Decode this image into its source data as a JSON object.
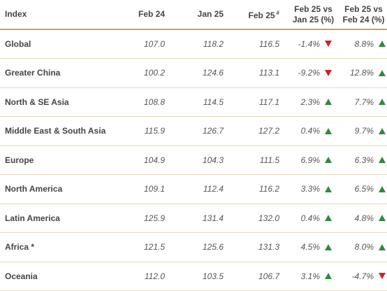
{
  "colors": {
    "up": "#2e8b3a",
    "down": "#d91f1f",
    "rule": "#c6a25c"
  },
  "table": {
    "headers": {
      "index": "Index",
      "feb24": "Feb 24",
      "jan25": "Jan 25",
      "feb25": "Feb 25",
      "feb25_note": "#",
      "mom_line1": "Feb 25 vs",
      "mom_line2": "Jan 25 (%)",
      "yoy_line1": "Feb 25 vs",
      "yoy_line2": "Feb 24 (%)"
    },
    "rows": [
      {
        "region": "Global",
        "feb24": "107.0",
        "jan25": "118.2",
        "feb25": "116.5",
        "mom": "-1.4%",
        "mom_dir": "down",
        "yoy": "8.8%",
        "yoy_dir": "up"
      },
      {
        "region": "Greater China",
        "feb24": "100.2",
        "jan25": "124.6",
        "feb25": "113.1",
        "mom": "-9.2%",
        "mom_dir": "down",
        "yoy": "12.8%",
        "yoy_dir": "up"
      },
      {
        "region": "North & SE Asia",
        "feb24": "108.8",
        "jan25": "114.5",
        "feb25": "117.1",
        "mom": "2.3%",
        "mom_dir": "up",
        "yoy": "7.7%",
        "yoy_dir": "up"
      },
      {
        "region": "Middle East & South Asia",
        "feb24": "115.9",
        "jan25": "126.7",
        "feb25": "127.2",
        "mom": "0.4%",
        "mom_dir": "up",
        "yoy": "9.7%",
        "yoy_dir": "up"
      },
      {
        "region": "Europe",
        "feb24": "104.9",
        "jan25": "104.3",
        "feb25": "111.5",
        "mom": "6.9%",
        "mom_dir": "up",
        "yoy": "6.3%",
        "yoy_dir": "up"
      },
      {
        "region": "North America",
        "feb24": "109.1",
        "jan25": "112.4",
        "feb25": "116.2",
        "mom": "3.3%",
        "mom_dir": "up",
        "yoy": "6.5%",
        "yoy_dir": "up"
      },
      {
        "region": "Latin America",
        "feb24": "125.9",
        "jan25": "131.4",
        "feb25": "132.0",
        "mom": "0.4%",
        "mom_dir": "up",
        "yoy": "4.8%",
        "yoy_dir": "up"
      },
      {
        "region": "Africa *",
        "feb24": "121.5",
        "jan25": "125.6",
        "feb25": "131.3",
        "mom": "4.5%",
        "mom_dir": "up",
        "yoy": "8.0%",
        "yoy_dir": "up"
      },
      {
        "region": "Oceania",
        "feb24": "112.0",
        "jan25": "103.5",
        "feb25": "106.7",
        "mom": "3.1%",
        "mom_dir": "up",
        "yoy": "-4.7%",
        "yoy_dir": "down"
      }
    ]
  }
}
